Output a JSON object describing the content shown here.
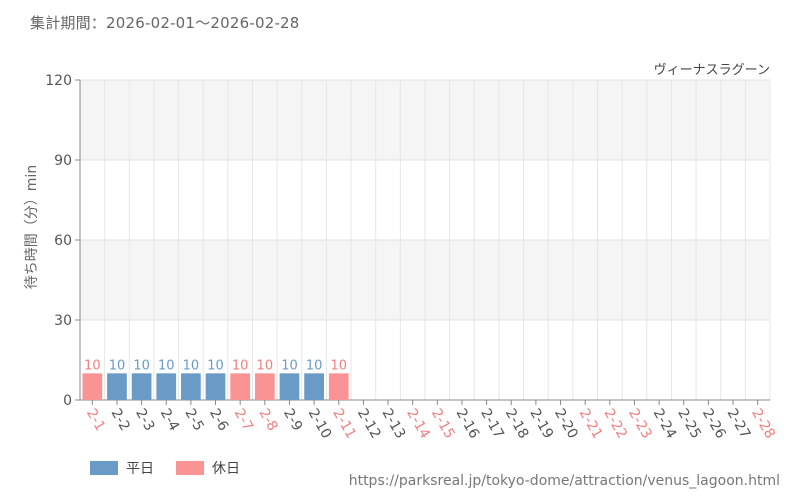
{
  "header": {
    "period_text": "集計期間：2026-02-01～2026-02-28"
  },
  "footer": {
    "url": "https://parksreal.jp/tokyo-dome/attraction/venus_lagoon.html"
  },
  "legend": {
    "items": [
      {
        "label": "平日",
        "color": "#6a9bc6"
      },
      {
        "label": "休日",
        "color": "#fa9494"
      }
    ]
  },
  "chart_data": {
    "type": "bar",
    "title": "ヴィーナスラグーン",
    "ylabel": "待ち時間（分）min",
    "xlabel": "",
    "ylim": [
      0,
      120
    ],
    "yticks": [
      0,
      30,
      60,
      90,
      120
    ],
    "grid": true,
    "legend_position": "bottom-left",
    "categories": [
      "2-1",
      "2-2",
      "2-3",
      "2-4",
      "2-5",
      "2-6",
      "2-7",
      "2-8",
      "2-9",
      "2-10",
      "2-11",
      "2-12",
      "2-13",
      "2-14",
      "2-15",
      "2-16",
      "2-17",
      "2-18",
      "2-19",
      "2-20",
      "2-21",
      "2-22",
      "2-23",
      "2-24",
      "2-25",
      "2-26",
      "2-27",
      "2-28"
    ],
    "holiday": [
      true,
      false,
      false,
      false,
      false,
      false,
      true,
      true,
      false,
      false,
      true,
      false,
      false,
      true,
      true,
      false,
      false,
      false,
      false,
      false,
      true,
      true,
      true,
      false,
      false,
      false,
      false,
      true
    ],
    "values": [
      10,
      10,
      10,
      10,
      10,
      10,
      10,
      10,
      10,
      10,
      10,
      null,
      null,
      null,
      null,
      null,
      null,
      null,
      null,
      null,
      null,
      null,
      null,
      null,
      null,
      null,
      null,
      null
    ],
    "colors": {
      "weekday": "#6a9bc6",
      "holiday": "#fa9494",
      "weekday_label": "#555555",
      "holiday_label": "#f08080"
    }
  }
}
